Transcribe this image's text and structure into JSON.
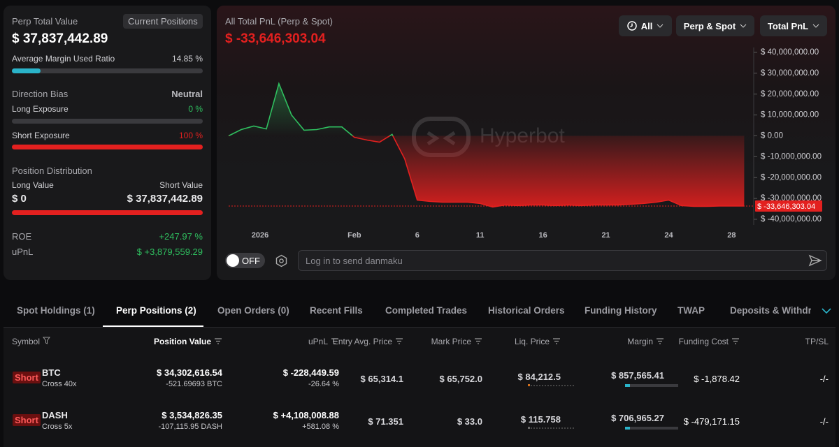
{
  "left_panel": {
    "perp_total_value_label": "Perp Total Value",
    "perp_total_value": "$ 37,837,442.89",
    "current_positions_button": "Current Positions",
    "margin_ratio_label": "Average Margin Used Ratio",
    "margin_ratio": "14.85 %",
    "direction_bias_label": "Direction Bias",
    "direction_bias": "Neutral",
    "long_exposure_label": "Long Exposure",
    "long_exposure": "0 %",
    "short_exposure_label": "Short Exposure",
    "short_exposure": "100 %",
    "position_distribution_label": "Position Distribution",
    "long_value_label": "Long Value",
    "short_value_label": "Short Value",
    "long_value": "$ 0",
    "short_value": "$ 37,837,442.89",
    "roe_label": "ROE",
    "roe": "+247.97 %",
    "upnl_label": "uPnL",
    "upnl": "$ +3,879,559.29"
  },
  "chart_panel": {
    "title": "All Total PnL (Perp & Spot)",
    "value": "$ -33,646,303.04",
    "filters": [
      "All",
      "Perp & Spot",
      "Total PnL"
    ],
    "watermark": "Hyperbot",
    "toggle": "OFF",
    "danmaku_placeholder": "Log in to send danmaku"
  },
  "chart": {
    "type": "line",
    "x": [
      0,
      1,
      2,
      3,
      4,
      5,
      6,
      7,
      8,
      9,
      10,
      11,
      12,
      13,
      14,
      15,
      16,
      17,
      18,
      19,
      20,
      21,
      22,
      23,
      24,
      25,
      26,
      27,
      28,
      29,
      30,
      31,
      32,
      33,
      34,
      35,
      36,
      37,
      38,
      39,
      40,
      41
    ],
    "values": [
      0,
      3000000,
      4700000,
      3300000,
      25000000,
      10000000,
      2700000,
      3000000,
      4300000,
      4300000,
      -700000,
      -2000000,
      -3000000,
      700000,
      -11000000,
      -30800000,
      -31400000,
      -31800000,
      -31800000,
      -31800000,
      -32400000,
      -34100000,
      -33100000,
      -33400000,
      -33100000,
      -33100000,
      -33400000,
      -33100000,
      -33400000,
      -33100000,
      -33100000,
      -33100000,
      -32800000,
      -32400000,
      -31800000,
      -30800000,
      -33400000,
      -33800000,
      -33800000,
      -33600000,
      -33600000,
      -33646303.04
    ],
    "xlim": [
      0,
      41.2
    ],
    "xticks": [
      {
        "value": 2.5,
        "label": "2026"
      },
      {
        "value": 10,
        "label": "Feb"
      },
      {
        "value": 15,
        "label": "6"
      },
      {
        "value": 20,
        "label": "11"
      },
      {
        "value": 25,
        "label": "16"
      },
      {
        "value": 30,
        "label": "21"
      },
      {
        "value": 35,
        "label": "24"
      },
      {
        "value": 40,
        "label": "28"
      }
    ],
    "ylim": [
      -40000000,
      40000000
    ],
    "yticks": [
      {
        "value": 40000000,
        "label": "$ 40,000,000.00"
      },
      {
        "value": 30000000,
        "label": "$ 30,000,000.00"
      },
      {
        "value": 20000000,
        "label": "$ 20,000,000.00"
      },
      {
        "value": 10000000,
        "label": "$ 10,000,000.00"
      },
      {
        "value": 0,
        "label": "$ 0.00"
      },
      {
        "value": -10000000,
        "label": "$ -10,000,000.00"
      },
      {
        "value": -20000000,
        "label": "$ -20,000,000.00"
      },
      {
        "value": -30000000,
        "label": "$ -30,000,000.00"
      },
      {
        "value": -40000000,
        "label": "$ -40,000,000.00"
      }
    ],
    "colors": {
      "positive": "#2fbf5f",
      "negative": "#e3201f"
    }
  },
  "tabs": {
    "items": [
      "Spot Holdings (1)",
      "Perp Positions (2)",
      "Open Orders (0)",
      "Recent Fills",
      "Completed Trades",
      "Historical Orders",
      "Funding History",
      "TWAP",
      "Deposits & Withdraw"
    ],
    "active": 1
  },
  "table": {
    "columns": [
      "Symbol",
      "Position Value",
      "uPnL",
      "Entry Avg. Price",
      "Mark Price",
      "Liq. Price",
      "Margin",
      "Funding Cost",
      "TP/SL"
    ],
    "rows": [
      {
        "side": "Short",
        "symbol": "BTC",
        "leverage": "Cross 40x",
        "position_value": "$ 34,302,616.54",
        "size": "-521.69693 BTC",
        "upnl": "$ -228,449.59",
        "upnl_pct": "-26.64 %",
        "entry": "$ 65,314.1",
        "mark": "$ 65,752.0",
        "liq": "$ 84,212.5",
        "margin": "$ 857,565.41",
        "funding": "$ -1,878.42",
        "tpsl": "-/-"
      },
      {
        "side": "Short",
        "symbol": "DASH",
        "leverage": "Cross 5x",
        "position_value": "$ 3,534,826.35",
        "size": "-107,115.95 DASH",
        "upnl": "$ +4,108,008.88",
        "upnl_pct": "+581.08 %",
        "entry": "$ 71.351",
        "mark": "$ 33.0",
        "liq": "$ 115.758",
        "margin": "$ 706,965.27",
        "funding": "$ -479,171.15",
        "tpsl": "-/-"
      }
    ]
  }
}
